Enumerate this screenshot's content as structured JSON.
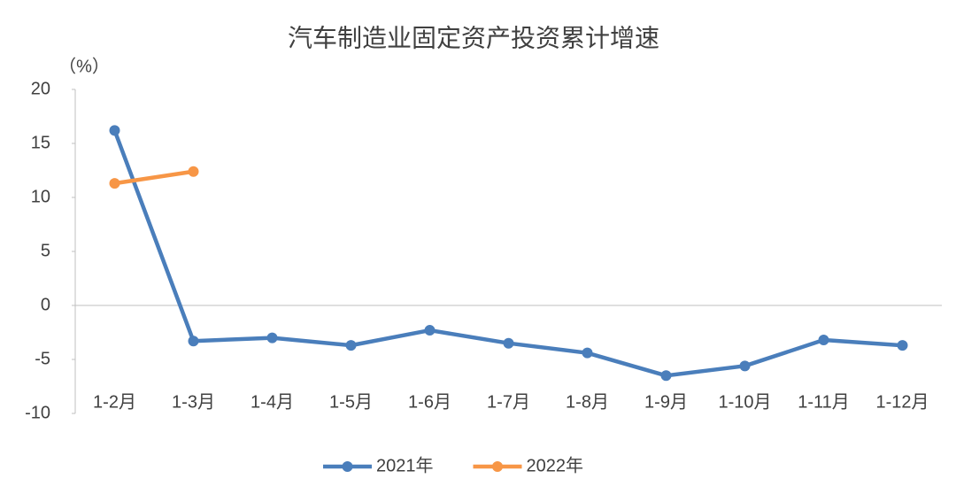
{
  "chart_data": {
    "type": "line",
    "title": "汽车制造业固定资产投资累计增速",
    "unit_label": "（%）",
    "categories": [
      "1-2月",
      "1-3月",
      "1-4月",
      "1-5月",
      "1-6月",
      "1-7月",
      "1-8月",
      "1-9月",
      "1-10月",
      "1-11月",
      "1-12月"
    ],
    "series": [
      {
        "name": "2021年",
        "color": "#4a7ebb",
        "values": [
          16.2,
          -3.3,
          -3.0,
          -3.7,
          -2.3,
          -3.5,
          -4.4,
          -6.5,
          -5.6,
          -3.2,
          -3.7
        ]
      },
      {
        "name": "2022年",
        "color": "#f79646",
        "values": [
          11.3,
          12.4,
          null,
          null,
          null,
          null,
          null,
          null,
          null,
          null,
          null
        ]
      }
    ],
    "ylim": [
      -10,
      20
    ],
    "yticks": [
      -10,
      -5,
      0,
      5,
      10,
      15,
      20
    ],
    "grid": false,
    "legend": "bottom"
  }
}
